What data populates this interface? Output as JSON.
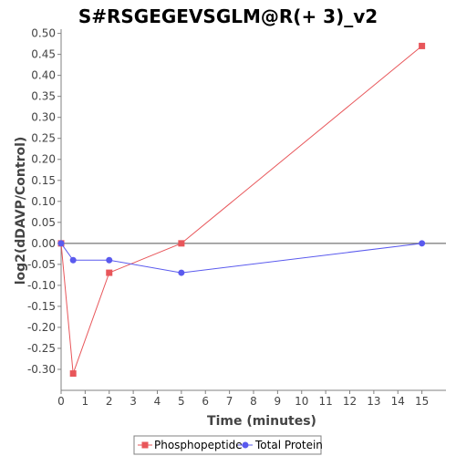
{
  "chart_data": {
    "type": "line",
    "title": "S#RSGEGEVSGLM@R(+ 3)_v2",
    "xlabel": "Time (minutes)",
    "ylabel": "log2(dDAVP/Control)",
    "xlim": [
      0,
      16
    ],
    "ylim": [
      -0.35,
      0.51
    ],
    "x_ticks": [
      0,
      1,
      2,
      3,
      4,
      5,
      6,
      7,
      8,
      9,
      10,
      11,
      12,
      13,
      14,
      15
    ],
    "y_ticks": [
      0.5,
      0.45,
      0.4,
      0.35,
      0.3,
      0.25,
      0.2,
      0.15,
      0.1,
      0.05,
      0.0,
      -0.05,
      -0.1,
      -0.15,
      -0.2,
      -0.25,
      -0.3
    ],
    "y_tick_labels": [
      "0.50",
      "0.45",
      "0.40",
      "0.35",
      "0.30",
      "0.25",
      "0.20",
      "0.15",
      "0.10",
      "0.05",
      "0.00",
      "-0.05",
      "-0.10",
      "-0.15",
      "-0.20",
      "-0.25",
      "-0.30"
    ],
    "zero_line": true,
    "grid": false,
    "legend_position": "bottom",
    "series": [
      {
        "name": "Phosphopeptide",
        "marker": "square",
        "color": "#e8565a",
        "x": [
          0,
          0.5,
          2,
          5,
          15
        ],
        "y": [
          0.0,
          -0.31,
          -0.07,
          0.0,
          0.47
        ]
      },
      {
        "name": "Total Protein",
        "marker": "circle",
        "color": "#5a5aee",
        "x": [
          0,
          0.5,
          2,
          5,
          15
        ],
        "y": [
          0.0,
          -0.04,
          -0.04,
          -0.07,
          0.0
        ]
      }
    ]
  }
}
